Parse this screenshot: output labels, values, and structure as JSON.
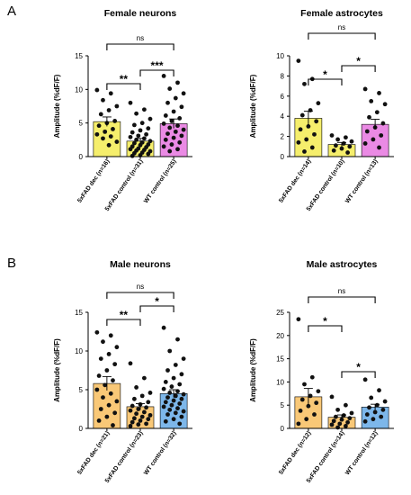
{
  "panel_labels": [
    "A",
    "B"
  ],
  "chart_data": [
    {
      "type": "bar",
      "title": "Female neurons",
      "ylabel": "Amplitude (%dF/F)",
      "ylim": [
        0,
        15
      ],
      "yticks": [
        0,
        5,
        10,
        15
      ],
      "categories": [
        "5xFAD dec (n=16)",
        "5xFAD control (n=31)",
        "WT control (n=25)"
      ],
      "bar_colors": [
        "#f5ee6c",
        "#f5ee6c",
        "#ea8ae4"
      ],
      "means": [
        5.2,
        2.3,
        4.9
      ],
      "sem": [
        0.7,
        0.4,
        0.7
      ],
      "points": [
        [
          9.9,
          9.4,
          8.4,
          7.5,
          6.9,
          6.3,
          5.3,
          5.0,
          4.6,
          4.1,
          3.7,
          3.3,
          3.0,
          2.7,
          2.2,
          1.7
        ],
        [
          8.0,
          7.0,
          6.4,
          5.6,
          5.0,
          4.7,
          4.2,
          3.9,
          3.6,
          3.3,
          3.1,
          2.9,
          2.7,
          2.5,
          2.3,
          2.1,
          2.0,
          1.8,
          1.7,
          1.5,
          1.4,
          1.2,
          1.1,
          1.0,
          0.9,
          0.8,
          0.6,
          0.5,
          0.4,
          0.2,
          0.1
        ],
        [
          12.0,
          11.0,
          10.1,
          9.4,
          8.7,
          8.0,
          7.4,
          6.7,
          6.1,
          5.7,
          5.3,
          4.9,
          4.6,
          4.3,
          4.0,
          3.7,
          3.4,
          3.1,
          2.8,
          2.5,
          2.1,
          1.8,
          1.5,
          1.1,
          0.8
        ]
      ],
      "comparisons": [
        {
          "from": 0,
          "to": 1,
          "label": "**"
        },
        {
          "from": 1,
          "to": 2,
          "label": "***"
        },
        {
          "from": 0,
          "to": 2,
          "label": "ns"
        }
      ]
    },
    {
      "type": "bar",
      "title": "Female astrocytes",
      "ylabel": "Amplitude (%dF/F)",
      "ylim": [
        0,
        10
      ],
      "yticks": [
        0,
        2,
        4,
        6,
        8,
        10
      ],
      "categories": [
        "5xFAD dec (n=14)",
        "5xFAD control (n=10)",
        "WT control (n=13)"
      ],
      "bar_colors": [
        "#f5ee6c",
        "#f5ee6c",
        "#ea8ae4"
      ],
      "means": [
        3.8,
        1.2,
        3.2
      ],
      "sem": [
        0.7,
        0.2,
        0.5
      ],
      "points": [
        [
          9.5,
          7.7,
          7.2,
          5.3,
          4.6,
          4.1,
          3.5,
          3.0,
          2.7,
          2.2,
          1.7,
          1.4,
          0.9,
          0.5
        ],
        [
          2.1,
          1.9,
          1.7,
          1.5,
          1.3,
          1.1,
          1.0,
          0.8,
          0.6,
          0.4
        ],
        [
          6.7,
          6.3,
          5.5,
          5.2,
          4.4,
          3.9,
          3.3,
          2.9,
          2.5,
          2.1,
          1.7,
          1.3,
          0.9
        ]
      ],
      "comparisons": [
        {
          "from": 0,
          "to": 1,
          "label": "*"
        },
        {
          "from": 1,
          "to": 2,
          "label": "*"
        },
        {
          "from": 0,
          "to": 2,
          "label": "ns"
        }
      ]
    },
    {
      "type": "bar",
      "title": "Male neurons",
      "ylabel": "Amplitude (%dF/F)",
      "ylim": [
        0,
        15
      ],
      "yticks": [
        0,
        5,
        10,
        15
      ],
      "categories": [
        "5xFAD dec (n=21)",
        "5xFAD control (n=23)",
        "WT control (n=32)"
      ],
      "bar_colors": [
        "#f9c877",
        "#f9c877",
        "#7db7ea"
      ],
      "means": [
        5.8,
        2.8,
        4.5
      ],
      "sem": [
        0.9,
        0.4,
        0.5
      ],
      "points": [
        [
          12.4,
          12.0,
          11.2,
          10.5,
          9.6,
          9.0,
          8.3,
          7.5,
          6.8,
          6.2,
          5.6,
          5.0,
          4.5,
          4.0,
          3.5,
          3.0,
          2.5,
          2.0,
          1.5,
          1.0,
          0.4
        ],
        [
          8.4,
          6.5,
          5.3,
          4.6,
          4.2,
          3.8,
          3.4,
          3.1,
          2.9,
          2.7,
          2.5,
          2.3,
          2.1,
          1.9,
          1.7,
          1.5,
          1.3,
          1.2,
          1.0,
          0.8,
          0.6,
          0.5,
          0.3
        ],
        [
          13.0,
          11.5,
          10.0,
          9.0,
          8.2,
          7.5,
          7.0,
          6.5,
          6.0,
          5.7,
          5.4,
          5.1,
          4.8,
          4.6,
          4.4,
          4.2,
          4.0,
          3.8,
          3.6,
          3.4,
          3.2,
          3.0,
          2.8,
          2.6,
          2.4,
          2.2,
          2.0,
          1.8,
          1.5,
          1.2,
          0.9,
          0.6
        ]
      ],
      "comparisons": [
        {
          "from": 0,
          "to": 1,
          "label": "**"
        },
        {
          "from": 1,
          "to": 2,
          "label": "*"
        },
        {
          "from": 0,
          "to": 2,
          "label": "ns"
        }
      ]
    },
    {
      "type": "bar",
      "title": "Male astrocytes",
      "ylabel": "Amplitude (%dF/F)",
      "ylim": [
        0,
        25
      ],
      "yticks": [
        0,
        5,
        10,
        15,
        20,
        25
      ],
      "categories": [
        "5xFAD dec (n=12)",
        "5xFAD control (n=14)",
        "WT control (n=12)"
      ],
      "bar_colors": [
        "#f9c877",
        "#f9c877",
        "#7db7ea"
      ],
      "means": [
        6.8,
        2.4,
        4.6
      ],
      "sem": [
        1.8,
        0.5,
        0.6
      ],
      "points": [
        [
          23.5,
          11.0,
          9.5,
          8.0,
          7.0,
          6.2,
          5.5,
          4.8,
          3.8,
          3.0,
          2.0,
          1.0
        ],
        [
          6.8,
          5.0,
          4.0,
          3.3,
          2.8,
          2.5,
          2.2,
          1.9,
          1.6,
          1.3,
          1.0,
          0.8,
          0.5,
          0.2
        ],
        [
          10.5,
          8.2,
          6.6,
          5.8,
          5.0,
          4.5,
          4.0,
          3.5,
          3.0,
          2.5,
          2.0,
          1.5
        ]
      ],
      "comparisons": [
        {
          "from": 0,
          "to": 1,
          "label": "*"
        },
        {
          "from": 1,
          "to": 2,
          "label": "*"
        },
        {
          "from": 0,
          "to": 2,
          "label": "ns"
        }
      ]
    }
  ]
}
